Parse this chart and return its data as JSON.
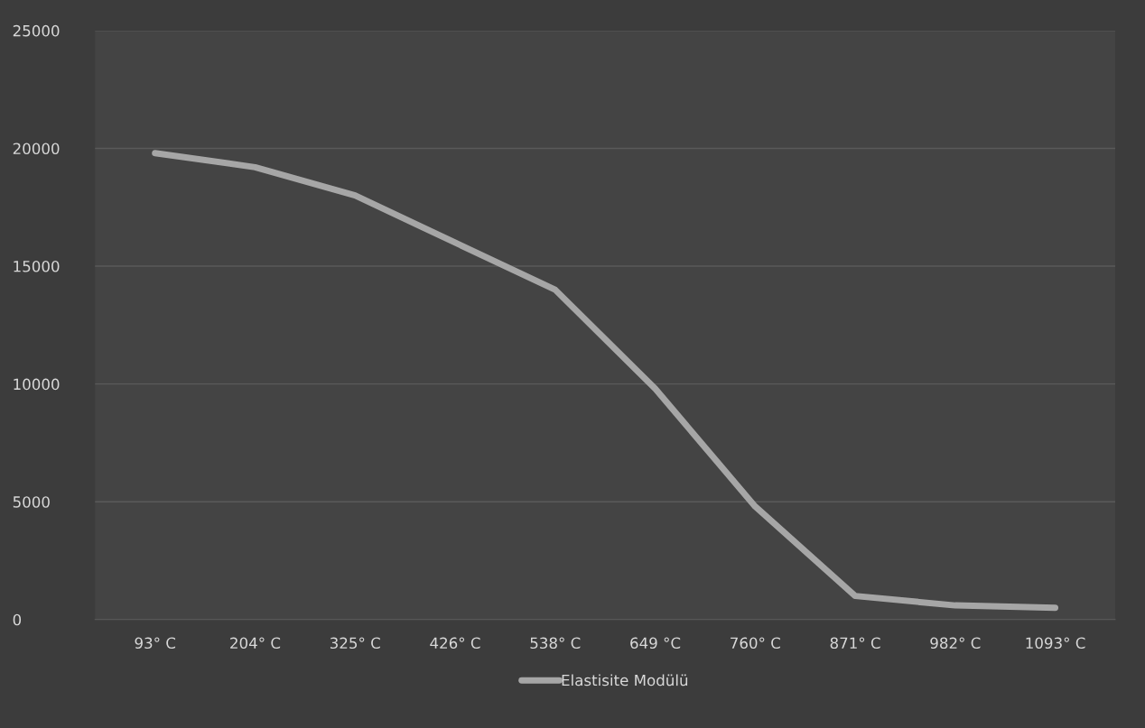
{
  "chart_data": {
    "type": "line",
    "categories": [
      "93° C",
      "204° C",
      "325° C",
      "426° C",
      "538° C",
      "649 °C",
      "760° C",
      "871° C",
      "982° C",
      "1093° C"
    ],
    "series": [
      {
        "name": "Elastisite Modülü",
        "color": "#a6a6a6",
        "values": [
          19800,
          19200,
          18000,
          16000,
          14000,
          9800,
          4800,
          1000,
          600,
          500
        ]
      }
    ],
    "ylim": [
      0,
      25000
    ],
    "yticks": [
      0,
      5000,
      10000,
      15000,
      20000,
      25000
    ],
    "grid": "y",
    "legend": "bottom",
    "marker": "none",
    "line_style": "solid"
  }
}
